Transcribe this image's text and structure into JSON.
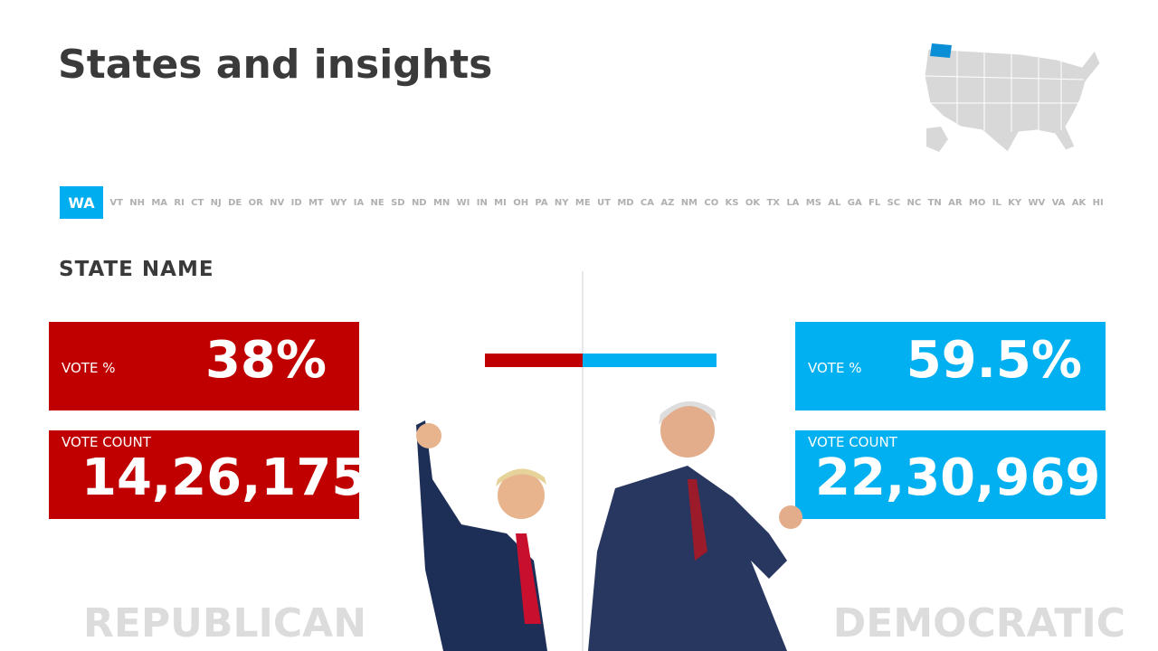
{
  "header": {
    "title": "States and insights"
  },
  "state_tabs": {
    "selected": "WA",
    "others": [
      "VT",
      "NH",
      "MA",
      "RI",
      "CT",
      "NJ",
      "DE",
      "OR",
      "NV",
      "ID",
      "MT",
      "WY",
      "IA",
      "NE",
      "SD",
      "ND",
      "MN",
      "WI",
      "IN",
      "MI",
      "OH",
      "PA",
      "NY",
      "ME",
      "UT",
      "MD",
      "CA",
      "AZ",
      "NM",
      "CO",
      "KS",
      "OK",
      "TX",
      "LA",
      "MS",
      "AL",
      "GA",
      "FL",
      "SC",
      "NC",
      "TN",
      "AR",
      "MO",
      "IL",
      "KY",
      "WV",
      "VA",
      "AK",
      "HI"
    ]
  },
  "state_name": "STATE NAME",
  "republican": {
    "party": "REPUBLICAN",
    "vote_pct_label": "VOTE %",
    "vote_pct": "38%",
    "vote_count_label": "VOTE COUNT",
    "vote_count": "14,26,175"
  },
  "democratic": {
    "party": "DEMOCRATIC",
    "vote_pct_label": "VOTE %",
    "vote_pct": "59.5%",
    "vote_count_label": "VOTE COUNT",
    "vote_count": "22,30,969"
  }
}
